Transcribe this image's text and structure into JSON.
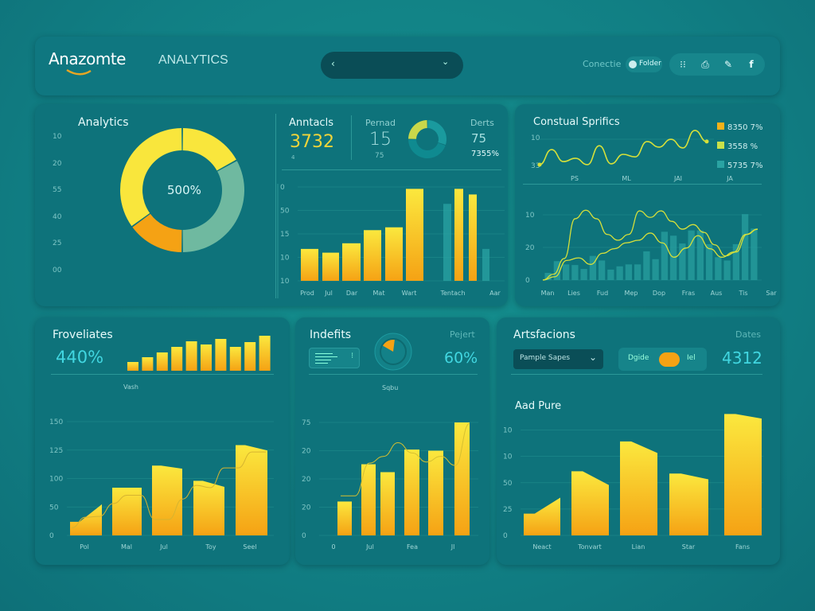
{
  "header": {
    "logo": "Anazomte",
    "section": "ANALYTICS",
    "selector": {
      "prev_icon": "chevron-left",
      "dropdown_icon": "chevron-down"
    },
    "connect_label": "Conectie",
    "toggle_label": "Folder",
    "icons": [
      "grid-icon",
      "document-icon",
      "brush-icon",
      "facebook-icon"
    ],
    "facebook_glyph": "f"
  },
  "colors": {
    "yellow": "#f9e63c",
    "orange": "#f5a214",
    "teal_bar": "#2aa3a3",
    "line": "#d6e03a",
    "accent_text": "#41d6e0",
    "panel": "#0e737b"
  },
  "analytics": {
    "title": "Analytics",
    "center_label": "500%",
    "ticks": [
      "10",
      "20",
      "55",
      "40",
      "25",
      "00"
    ]
  },
  "anntacls": {
    "title": "Anntacls",
    "value": "3732",
    "sub": "4",
    "period_label": "Pernad",
    "period_value": "15",
    "period_sub": "75",
    "derts_label": "Derts",
    "derts_value": "75",
    "derts_pct": "7355%"
  },
  "coastal": {
    "title": "Constual Sprifics",
    "legend": [
      {
        "label": "8350 7%",
        "color": "#f5b21a"
      },
      {
        "label": "3558 %",
        "color": "#c9e04a"
      },
      {
        "label": "5735 7%",
        "color": "#2aa3a3"
      }
    ]
  },
  "froveliates": {
    "title": "Froveliates",
    "value": "440%",
    "caption": "Vash"
  },
  "indefits": {
    "title": "Indefits",
    "pejert_label": "Pejert",
    "pejert_value": "60%",
    "caption": "Sqbu"
  },
  "artsfacions": {
    "title": "Artsfacions",
    "dropdown_value": "Pample Sapes",
    "toggle_left": "Dgide",
    "toggle_right": "Iel",
    "dates_label": "Dates",
    "dates_value": "4312",
    "chart_title": "Aad Pure"
  },
  "chart_data": [
    {
      "id": "donut",
      "type": "pie",
      "center": "500%",
      "slices": [
        {
          "value": 17,
          "color": "#f9e63c"
        },
        {
          "value": 33,
          "color": "#6fb9a0"
        },
        {
          "value": 15,
          "color": "#f5a214"
        },
        {
          "value": 35,
          "color": "#f9e63c"
        }
      ]
    },
    {
      "id": "mini-donut",
      "type": "pie",
      "slices": [
        {
          "value": 30,
          "color": "#1a9a9e"
        },
        {
          "value": 45,
          "color": "#0f8a90"
        },
        {
          "value": 25,
          "color": "#c9d84a"
        }
      ]
    },
    {
      "id": "anntacls-bars",
      "type": "bar",
      "categories": [
        "Prod",
        "Jul",
        "Dar",
        "Mat",
        "Wart",
        "",
        "Tentach",
        "",
        "Aar"
      ],
      "xlabels": [
        "Prod",
        "Jul",
        "Dar",
        "Mat",
        "Wart",
        "Tentach",
        "Aar"
      ],
      "ticks": [
        "10",
        "10",
        "15",
        "50",
        "0"
      ],
      "groups": [
        {
          "values": [
            34,
            30,
            40,
            54,
            57,
            98
          ],
          "colors": [
            "y",
            "y",
            "y",
            "y",
            "y",
            "y"
          ]
        },
        {
          "values": [
            82,
            98,
            92,
            34
          ],
          "colors": [
            "t",
            "y",
            "y",
            "t"
          ]
        }
      ],
      "ylim": [
        0,
        100
      ]
    },
    {
      "id": "coastal-top",
      "type": "line",
      "ticks": [
        "10",
        "33"
      ],
      "xlabels": [
        "PS",
        "ML",
        "JAI",
        "JA"
      ],
      "series": [
        {
          "values": [
            3,
            57,
            14,
            26,
            3,
            71,
            6,
            40,
            31,
            86,
            66,
            94,
            63,
            126,
            86
          ]
        }
      ],
      "ylim": [
        0,
        130
      ]
    },
    {
      "id": "coastal-bottom",
      "type": "bar+line",
      "ticks": [
        "10",
        "20",
        "0"
      ],
      "xlabels": [
        "Man",
        "Lies",
        "Fud",
        "Mep",
        "Dop",
        "Fras",
        "Aus",
        "Tis",
        "Sar"
      ],
      "bars": [
        11,
        29,
        24,
        23,
        17,
        37,
        30,
        16,
        21,
        24,
        24,
        44,
        32,
        74,
        68,
        56,
        76,
        76,
        55,
        35,
        30,
        55,
        101,
        79
      ],
      "series": [
        {
          "values": [
            0,
            9,
            33,
            94,
            107,
            94,
            70,
            61,
            70,
            106,
            96,
            106,
            90,
            78,
            85,
            73,
            54,
            37,
            43,
            70,
            78
          ]
        },
        {
          "values": [
            0,
            5,
            30,
            34,
            24,
            41,
            48,
            57,
            61,
            72,
            57,
            35,
            49,
            68,
            48,
            35,
            43,
            70,
            78
          ]
        }
      ],
      "ylim": [
        0,
        110
      ]
    },
    {
      "id": "frov-mini",
      "type": "bar",
      "values": [
        11,
        17,
        23,
        30,
        37,
        33,
        40,
        30,
        36,
        44
      ],
      "ylim": [
        0,
        44
      ]
    },
    {
      "id": "frov-main",
      "type": "area-bar",
      "ticks": [
        "0",
        "50",
        "100",
        "125",
        "150"
      ],
      "xlabels": [
        "Pol",
        "Mal",
        "Jul",
        "Toy",
        "Seel"
      ],
      "bars": [
        [
          18,
          41
        ],
        [
          63,
          63
        ],
        [
          92,
          88
        ],
        [
          72,
          64
        ],
        [
          119,
          112
        ]
      ],
      "series": [
        {
          "values": [
            10,
            24,
            25,
            42,
            53,
            53,
            21,
            21,
            48,
            66,
            63,
            89,
            89,
            110,
            110
          ]
        }
      ],
      "ylim": [
        0,
        150
      ]
    },
    {
      "id": "indefits-main",
      "type": "bar+line",
      "ticks": [
        "0",
        "20",
        "20",
        "20",
        "75"
      ],
      "xlabels": [
        "0",
        "Jul",
        "Fea",
        "Jl"
      ],
      "bars": [
        30,
        63,
        56,
        76,
        75,
        100
      ],
      "series": [
        {
          "values": [
            35,
            35,
            64,
            70,
            82,
            73,
            65,
            70,
            62,
            99
          ]
        }
      ],
      "ylim": [
        0,
        100
      ]
    },
    {
      "id": "arts-main",
      "type": "area-bar",
      "ticks": [
        "0",
        "25",
        "50",
        "10",
        "10"
      ],
      "xlabels": [
        "Neact",
        "Tonvart",
        "Lian",
        "Star",
        "Fans"
      ],
      "bars": [
        [
          19,
          33
        ],
        [
          56,
          44
        ],
        [
          82,
          72
        ],
        [
          54,
          49
        ],
        [
          106,
          102
        ]
      ],
      "ylim": [
        0,
        100
      ]
    }
  ]
}
